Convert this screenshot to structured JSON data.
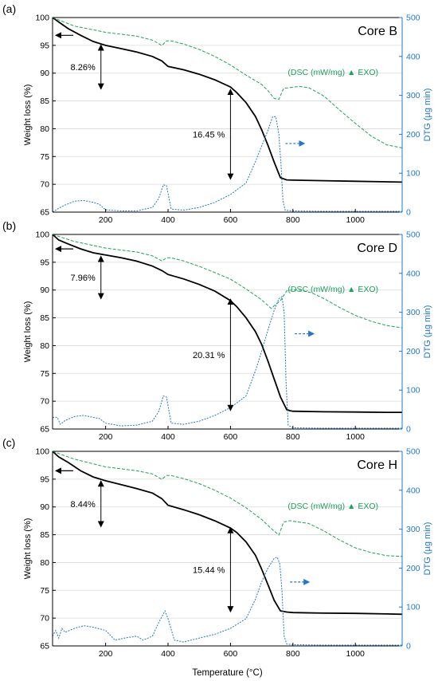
{
  "figure": {
    "xlabel": "Temperature (°C)"
  },
  "colors": {
    "weight": "#000000",
    "dsc": "#1aa35a",
    "dtg": "#1f77d4",
    "grid": "#d9d9d9"
  },
  "chart_data": [
    {
      "panel": "(a)",
      "title": "Core B",
      "type": "line",
      "xlim": [
        30,
        1150
      ],
      "xticks": [
        200,
        400,
        600,
        800,
        1000
      ],
      "ylabel_left": "Weight loss (%)",
      "ylim_left": [
        65,
        100
      ],
      "yticks_left": [
        65,
        70,
        75,
        80,
        85,
        90,
        95,
        100
      ],
      "ylabel_right": "DTG (µg min)",
      "ylim_right": [
        0,
        500
      ],
      "yticks_right": [
        0,
        100,
        200,
        300,
        400,
        500
      ],
      "dsc_label": "(DSC (mW/mg) ▲ EXO)",
      "annotations": [
        {
          "text": "8.26%",
          "x": 185,
          "from": 95.2,
          "to": 87.0
        },
        {
          "text": "16.45 %",
          "x": 600,
          "from": 87.2,
          "to": 70.8
        }
      ],
      "series": [
        {
          "name": "Weight loss",
          "axis": "left",
          "x": [
            30,
            50,
            80,
            120,
            160,
            200,
            250,
            300,
            350,
            380,
            400,
            450,
            500,
            550,
            600,
            620,
            650,
            680,
            700,
            720,
            740,
            760,
            780,
            800,
            900,
            1000,
            1100,
            1150
          ],
          "y": [
            100,
            99.2,
            98.0,
            96.8,
            95.7,
            95.0,
            94.4,
            93.8,
            93.0,
            92.2,
            91.2,
            90.6,
            89.8,
            88.8,
            87.5,
            86.5,
            84.7,
            82.2,
            79.8,
            77.0,
            74.0,
            71.2,
            70.8,
            70.75,
            70.65,
            70.55,
            70.45,
            70.4
          ]
        },
        {
          "name": "DSC",
          "axis": "right",
          "x": [
            30,
            100,
            200,
            300,
            350,
            380,
            395,
            410,
            450,
            500,
            550,
            600,
            650,
            700,
            720,
            740,
            755,
            770,
            790,
            820,
            850,
            900,
            950,
            1000,
            1050,
            1100,
            1150
          ],
          "y": [
            500,
            478,
            462,
            452,
            442,
            428,
            440,
            440,
            432,
            418,
            400,
            378,
            352,
            328,
            312,
            292,
            290,
            318,
            320,
            323,
            320,
            298,
            262,
            228,
            196,
            173,
            165
          ]
        },
        {
          "name": "DTG",
          "axis": "right",
          "x": [
            30,
            50,
            70,
            100,
            130,
            160,
            180,
            200,
            250,
            300,
            350,
            370,
            385,
            395,
            410,
            450,
            500,
            550,
            600,
            650,
            680,
            700,
            720,
            735,
            745,
            755,
            762,
            768,
            775,
            800,
            900,
            1000,
            1150
          ],
          "y": [
            0,
            10,
            18,
            28,
            30,
            25,
            20,
            6,
            3,
            3,
            12,
            35,
            70,
            68,
            8,
            5,
            12,
            25,
            45,
            75,
            130,
            170,
            210,
            245,
            245,
            200,
            120,
            30,
            5,
            3,
            2,
            2,
            2
          ]
        }
      ]
    },
    {
      "panel": "(b)",
      "title": "Core D",
      "type": "line",
      "xlim": [
        30,
        1150
      ],
      "xticks": [
        200,
        400,
        600,
        800,
        1000
      ],
      "ylabel_left": "Weight loss (%)",
      "ylim_left": [
        65,
        100
      ],
      "yticks_left": [
        65,
        70,
        75,
        80,
        85,
        90,
        95,
        100
      ],
      "ylabel_right": "DTG (µg min)",
      "ylim_right": [
        0,
        500
      ],
      "yticks_right": [
        0,
        100,
        200,
        300,
        400,
        500
      ],
      "dsc_label": "(DSC (mW/mg) ▲ EXO)",
      "annotations": [
        {
          "text": "7.96%",
          "x": 185,
          "from": 96.2,
          "to": 88.3
        },
        {
          "text": "20.31 %",
          "x": 600,
          "from": 88.5,
          "to": 68.2
        }
      ],
      "series": [
        {
          "name": "Weight loss",
          "axis": "left",
          "x": [
            30,
            50,
            80,
            120,
            160,
            200,
            250,
            300,
            350,
            380,
            400,
            450,
            500,
            550,
            600,
            620,
            650,
            680,
            700,
            720,
            740,
            760,
            780,
            790,
            800,
            900,
            1000,
            1100,
            1150
          ],
          "y": [
            100,
            99.0,
            98.3,
            97.4,
            96.7,
            96.3,
            95.8,
            95.2,
            94.3,
            93.5,
            92.8,
            92.0,
            91.0,
            89.8,
            88.1,
            87.0,
            85.0,
            82.5,
            80.2,
            77.2,
            74.0,
            70.8,
            68.5,
            68.3,
            68.2,
            68.1,
            68.05,
            68.0,
            68.0
          ]
        },
        {
          "name": "DSC",
          "axis": "right",
          "x": [
            30,
            100,
            200,
            300,
            350,
            380,
            395,
            410,
            450,
            500,
            550,
            600,
            650,
            700,
            730,
            760,
            780,
            800,
            830,
            860,
            900,
            950,
            1000,
            1050,
            1100,
            1150
          ],
          "y": [
            500,
            482,
            465,
            455,
            445,
            432,
            440,
            440,
            432,
            418,
            402,
            385,
            360,
            332,
            310,
            330,
            355,
            358,
            356,
            350,
            335,
            312,
            292,
            277,
            266,
            260
          ]
        },
        {
          "name": "DTG",
          "axis": "right",
          "x": [
            30,
            45,
            55,
            70,
            100,
            130,
            160,
            180,
            200,
            250,
            300,
            350,
            370,
            385,
            395,
            410,
            450,
            500,
            550,
            600,
            650,
            680,
            700,
            720,
            740,
            755,
            765,
            772,
            778,
            785,
            800,
            900,
            1000,
            1150
          ],
          "y": [
            30,
            30,
            12,
            22,
            32,
            35,
            30,
            27,
            15,
            8,
            10,
            20,
            45,
            85,
            82,
            15,
            12,
            20,
            35,
            55,
            85,
            150,
            200,
            255,
            305,
            335,
            340,
            300,
            120,
            10,
            3,
            2,
            2,
            2
          ]
        }
      ]
    },
    {
      "panel": "(c)",
      "title": "Core H",
      "type": "line",
      "xlim": [
        30,
        1150
      ],
      "xticks": [
        200,
        400,
        600,
        800,
        1000
      ],
      "ylabel_left": "Weight loss (%)",
      "ylim_left": [
        65,
        100
      ],
      "yticks_left": [
        65,
        70,
        75,
        80,
        85,
        90,
        95,
        100
      ],
      "ylabel_right": "DTG (µg min)",
      "ylim_right": [
        0,
        500
      ],
      "yticks_right": [
        0,
        100,
        200,
        300,
        400,
        500
      ],
      "dsc_label": "(DSC (mW/mg) ▲ EXO)",
      "annotations": [
        {
          "text": "8.44%",
          "x": 185,
          "from": 94.8,
          "to": 86.3
        },
        {
          "text": "15.44 %",
          "x": 600,
          "from": 86.4,
          "to": 71.0
        }
      ],
      "series": [
        {
          "name": "Weight loss",
          "axis": "left",
          "x": [
            30,
            50,
            80,
            120,
            160,
            200,
            250,
            300,
            350,
            380,
            400,
            450,
            500,
            550,
            600,
            620,
            650,
            680,
            700,
            720,
            740,
            760,
            780,
            800,
            900,
            1000,
            1100,
            1150
          ],
          "y": [
            100,
            99.0,
            98.0,
            96.5,
            95.4,
            94.7,
            94.0,
            93.3,
            92.5,
            91.5,
            90.3,
            89.5,
            88.6,
            87.5,
            86.2,
            85.4,
            83.7,
            81.3,
            78.8,
            76.0,
            73.2,
            71.3,
            71.1,
            71.0,
            70.9,
            70.85,
            70.75,
            70.7
          ]
        },
        {
          "name": "DSC",
          "axis": "right",
          "x": [
            30,
            100,
            200,
            300,
            350,
            380,
            395,
            410,
            450,
            500,
            550,
            600,
            650,
            700,
            730,
            755,
            770,
            790,
            820,
            850,
            900,
            950,
            1000,
            1050,
            1100,
            1150
          ],
          "y": [
            500,
            480,
            460,
            450,
            442,
            428,
            438,
            438,
            430,
            417,
            400,
            380,
            355,
            325,
            302,
            285,
            318,
            322,
            318,
            315,
            295,
            272,
            252,
            240,
            232,
            230
          ]
        },
        {
          "name": "DTG",
          "axis": "right",
          "x": [
            30,
            40,
            50,
            60,
            70,
            100,
            130,
            160,
            200,
            230,
            260,
            300,
            320,
            350,
            370,
            390,
            400,
            420,
            450,
            500,
            550,
            600,
            650,
            680,
            700,
            720,
            740,
            750,
            758,
            765,
            772,
            780,
            800,
            900,
            1000,
            1150
          ],
          "y": [
            25,
            40,
            20,
            45,
            35,
            45,
            52,
            48,
            40,
            15,
            20,
            25,
            15,
            25,
            60,
            90,
            70,
            15,
            10,
            20,
            30,
            45,
            70,
            120,
            165,
            200,
            225,
            228,
            210,
            140,
            25,
            5,
            3,
            2,
            2,
            2
          ]
        }
      ]
    }
  ]
}
